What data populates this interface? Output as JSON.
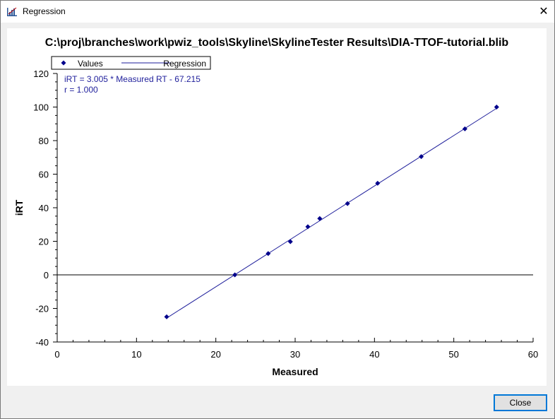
{
  "window": {
    "title": "Regression",
    "close_icon": "close-x-icon",
    "app_icon": "regression-chart-icon"
  },
  "buttons": {
    "close_label": "Close"
  },
  "colors": {
    "points": "#00008b",
    "regression_line": "#1e1e9b",
    "equation_text": "#1e1e9b",
    "axis": "#000000"
  },
  "chart_data": {
    "type": "scatter",
    "title": "C:\\proj\\branches\\work\\pwiz_tools\\Skyline\\SkylineTester  Results\\DIA-TTOF-tutorial.blib",
    "xlabel": "Measured",
    "ylabel": "iRT",
    "xlim": [
      0,
      60
    ],
    "ylim": [
      -40,
      120
    ],
    "x_ticks": [
      "0",
      "10",
      "20",
      "30",
      "40",
      "50",
      "60"
    ],
    "y_ticks": [
      "-40",
      "-20",
      "0",
      "20",
      "40",
      "60",
      "80",
      "100",
      "120"
    ],
    "grid": false,
    "zero_line": true,
    "legend": {
      "position": "top-left",
      "entries": [
        "Values",
        "Regression"
      ]
    },
    "annotations": [
      "iRT = 3.005 * Measured RT - 67.215",
      "r = 1.000"
    ],
    "series": [
      {
        "name": "Values",
        "kind": "points",
        "points": [
          {
            "x": 13.8,
            "y": -25.0
          },
          {
            "x": 22.4,
            "y": 0.0
          },
          {
            "x": 26.6,
            "y": 12.7
          },
          {
            "x": 29.4,
            "y": 19.8
          },
          {
            "x": 31.6,
            "y": 28.7
          },
          {
            "x": 33.1,
            "y": 33.6
          },
          {
            "x": 36.6,
            "y": 42.5
          },
          {
            "x": 40.4,
            "y": 54.6
          },
          {
            "x": 45.9,
            "y": 70.5
          },
          {
            "x": 51.4,
            "y": 87.0
          },
          {
            "x": 55.4,
            "y": 100.0
          }
        ]
      },
      {
        "name": "Regression",
        "kind": "line",
        "slope": 3.005,
        "intercept": -67.215,
        "x_range": [
          13.8,
          55.4
        ]
      }
    ]
  }
}
